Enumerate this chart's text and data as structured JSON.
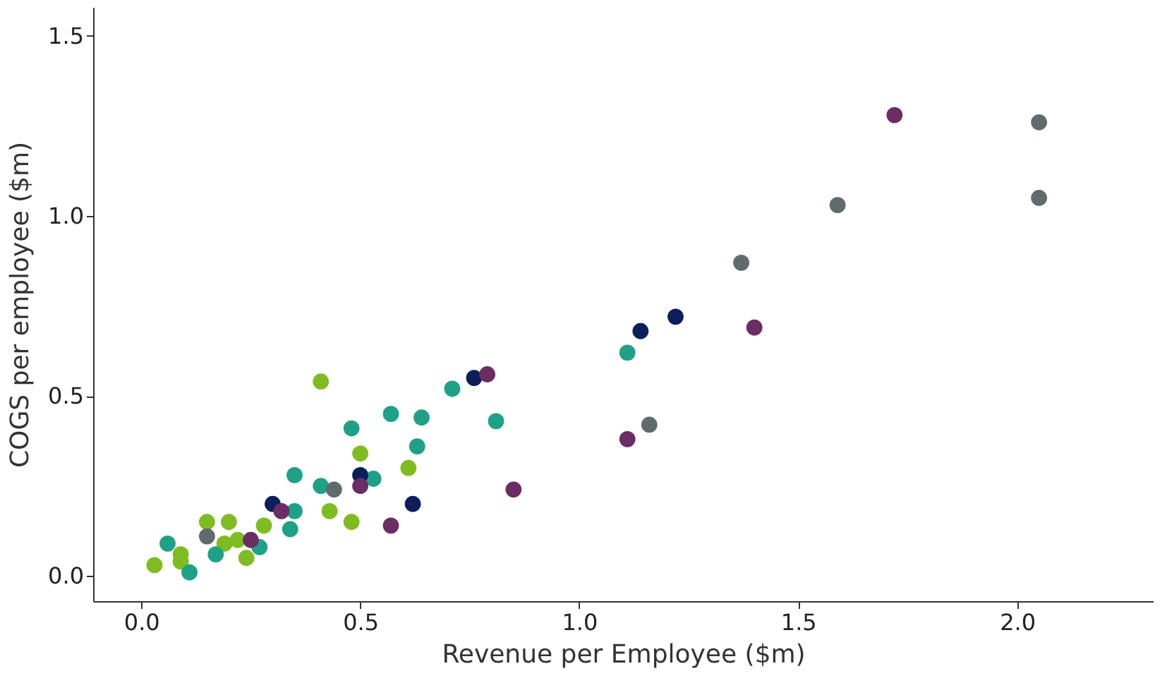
{
  "chart_data": {
    "type": "scatter",
    "xlabel": "Revenue per Employee ($m)",
    "ylabel": "COGS per employee ($m)",
    "xlim": [
      -0.11,
      2.31
    ],
    "ylim": [
      -0.07,
      1.58
    ],
    "xticks": [
      {
        "value": 0,
        "label": "0.0"
      },
      0.5,
      {
        "value": 1,
        "label": "1.0"
      },
      1.5,
      {
        "value": 2,
        "label": "2.0"
      }
    ],
    "yticks": [
      {
        "value": 0,
        "label": "0.0"
      },
      0.5,
      {
        "value": 1,
        "label": "1.0"
      },
      1.5
    ],
    "grid": false,
    "legend": false,
    "marker": "circle",
    "series": [
      {
        "color": "#7fbc21",
        "x": [
          0.03,
          0.09,
          0.09,
          0.15,
          0.2,
          0.19,
          0.22,
          0.24,
          0.28,
          0.41,
          0.5,
          0.43,
          0.48,
          0.61
        ],
        "values": [
          0.03,
          0.06,
          0.04,
          0.15,
          0.15,
          0.09,
          0.1,
          0.05,
          0.14,
          0.54,
          0.34,
          0.18,
          0.15,
          0.3
        ]
      },
      {
        "color": "#1fa187",
        "x": [
          0.06,
          0.11,
          0.17,
          0.27,
          0.34,
          0.35,
          0.35,
          0.41,
          0.48,
          0.53,
          0.57,
          0.64,
          0.63,
          0.71,
          0.81,
          1.11
        ],
        "values": [
          0.09,
          0.01,
          0.06,
          0.08,
          0.13,
          0.18,
          0.28,
          0.25,
          0.41,
          0.27,
          0.45,
          0.44,
          0.36,
          0.52,
          0.43,
          0.62
        ]
      },
      {
        "color": "#0c1f5c",
        "x": [
          0.3,
          0.5,
          0.62,
          0.76,
          1.14,
          1.22
        ],
        "values": [
          0.2,
          0.28,
          0.2,
          0.55,
          0.68,
          0.72
        ]
      },
      {
        "color": "#6b2d63",
        "x": [
          0.32,
          0.25,
          0.5,
          0.57,
          0.79,
          0.85,
          1.11,
          1.4,
          1.72
        ],
        "values": [
          0.18,
          0.1,
          0.25,
          0.14,
          0.56,
          0.24,
          0.38,
          0.69,
          1.28
        ]
      },
      {
        "color": "#5f6b6d",
        "x": [
          0.15,
          0.44,
          1.16,
          1.37,
          1.59,
          2.05,
          2.05
        ],
        "values": [
          0.11,
          0.24,
          0.42,
          0.87,
          1.03,
          1.05,
          1.26
        ]
      }
    ]
  }
}
